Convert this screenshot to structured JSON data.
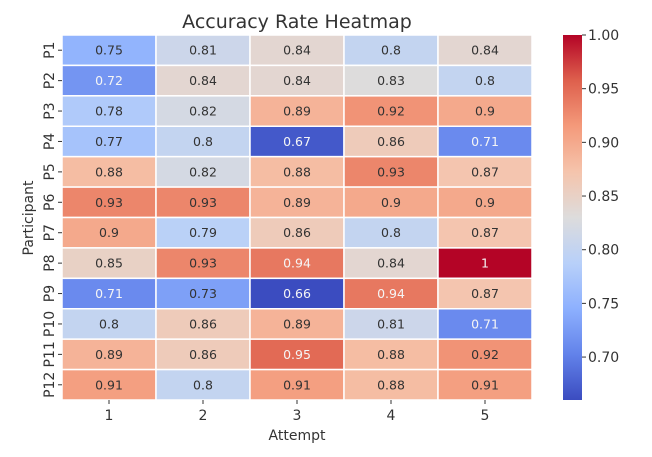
{
  "chart_data": {
    "type": "heatmap",
    "title": "Accuracy Rate Heatmap",
    "xlabel": "Attempt",
    "ylabel": "Participant",
    "x_categories": [
      "1",
      "2",
      "3",
      "4",
      "5"
    ],
    "y_categories": [
      "P1",
      "P2",
      "P3",
      "P4",
      "P5",
      "P6",
      "P7",
      "P8",
      "P9",
      "P10",
      "P11",
      "P12"
    ],
    "values": [
      [
        0.75,
        0.81,
        0.84,
        0.8,
        0.84
      ],
      [
        0.72,
        0.84,
        0.84,
        0.83,
        0.8
      ],
      [
        0.78,
        0.82,
        0.89,
        0.92,
        0.9
      ],
      [
        0.77,
        0.8,
        0.67,
        0.86,
        0.71
      ],
      [
        0.88,
        0.82,
        0.88,
        0.93,
        0.87
      ],
      [
        0.93,
        0.93,
        0.89,
        0.9,
        0.9
      ],
      [
        0.9,
        0.79,
        0.86,
        0.8,
        0.87
      ],
      [
        0.85,
        0.93,
        0.94,
        0.84,
        1
      ],
      [
        0.71,
        0.73,
        0.66,
        0.94,
        0.87
      ],
      [
        0.8,
        0.86,
        0.89,
        0.81,
        0.71
      ],
      [
        0.89,
        0.86,
        0.95,
        0.88,
        0.92
      ],
      [
        0.91,
        0.8,
        0.91,
        0.88,
        0.91
      ]
    ],
    "colormap": "coolwarm",
    "color_range": [
      0.66,
      1.0
    ],
    "colorbar_ticks": [
      "0.70",
      "0.75",
      "0.80",
      "0.85",
      "0.90",
      "0.95",
      "1.00"
    ],
    "annotated": true
  }
}
